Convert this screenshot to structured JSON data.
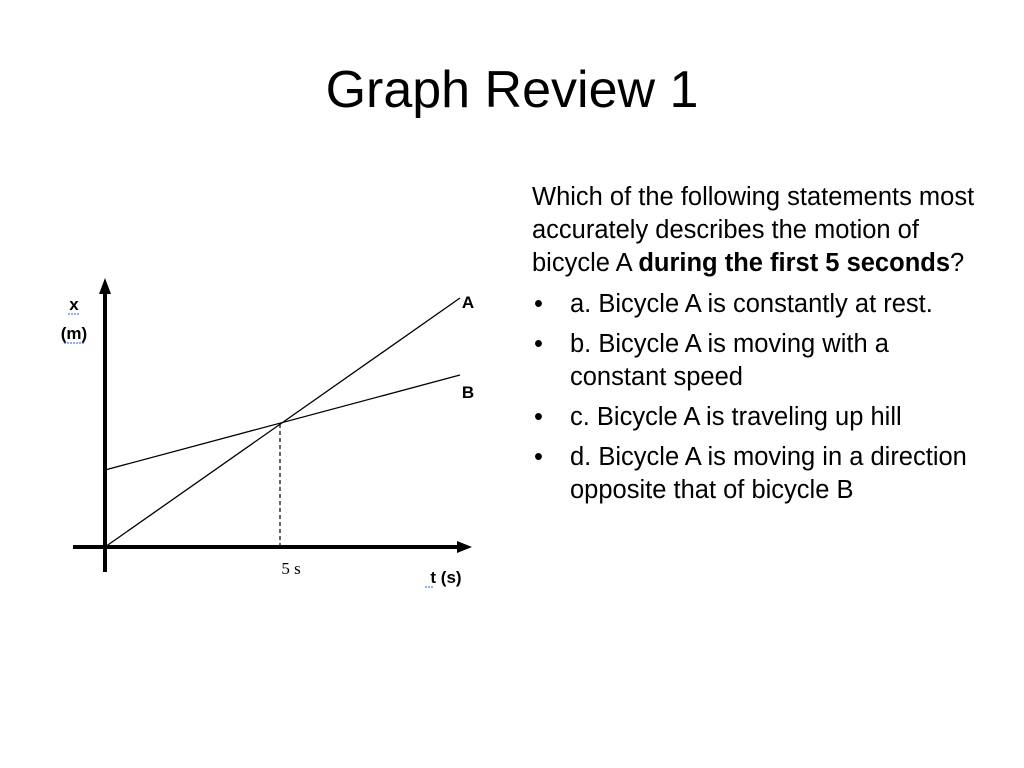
{
  "slide": {
    "title": "Graph Review 1"
  },
  "graph": {
    "y_axis_label_line1": "x",
    "y_axis_label_line2": "(m)",
    "x_axis_label": "t (s)",
    "line_a_label": "A",
    "line_b_label": "B",
    "tick_label": "5 s"
  },
  "question": {
    "text_before": "Which of the following statements most accurately describes the motion of bicycle A ",
    "text_bold": "during the first 5 seconds",
    "text_after": "?",
    "bullet_symbol": "•",
    "options": [
      {
        "text": "a. Bicycle A is constantly at rest."
      },
      {
        "text": "b. Bicycle A is moving with a constant speed"
      },
      {
        "text": "c. Bicycle A is traveling up hill"
      },
      {
        "text": "d. Bicycle A is moving in a direction opposite that of bicycle B"
      }
    ]
  }
}
